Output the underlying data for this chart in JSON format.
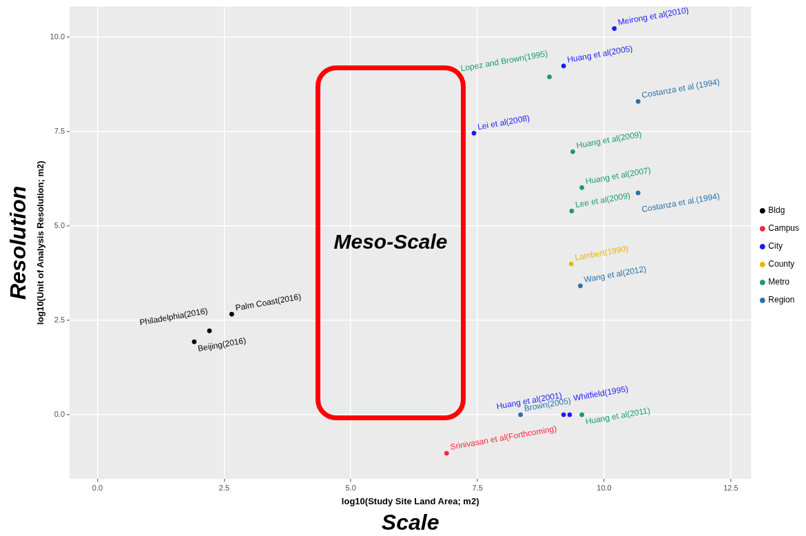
{
  "chart_data": {
    "type": "scatter",
    "xlabel": "log10(Study Site Land Area; m2)",
    "ylabel": "log10(Unit of Analysis Resolution; m2)",
    "xlim": [
      -0.55,
      12.9
    ],
    "ylim": [
      -1.7,
      10.8
    ],
    "xticks": [
      {
        "value": 0,
        "label": "0.0"
      },
      {
        "value": 2.5,
        "label": "2.5"
      },
      {
        "value": 5,
        "label": "5.0"
      },
      {
        "value": 7.5,
        "label": "7.5"
      },
      {
        "value": 10,
        "label": "10.0"
      },
      {
        "value": 12.5,
        "label": "12.5"
      }
    ],
    "yticks": [
      {
        "value": 0,
        "label": "0.0"
      },
      {
        "value": 2.5,
        "label": "2.5"
      },
      {
        "value": 5,
        "label": "5.0"
      },
      {
        "value": 7.5,
        "label": "7.5"
      },
      {
        "value": 10,
        "label": "10.0"
      }
    ],
    "grid": true,
    "legend": "right",
    "marker": "circle",
    "annotations": [
      "Resolution",
      "Scale",
      "Meso-Scale",
      {
        "text": "Beijing(2016)",
        "x": 1.91,
        "y": 1.93
      },
      {
        "text": "Philadelphia(2016)",
        "x": 2.21,
        "y": 2.22
      },
      {
        "text": "Palm Coast(2016)",
        "x": 2.65,
        "y": 2.66
      },
      {
        "text": "Srinivasan et al(Forthcoming)",
        "x": 6.89,
        "y": -1.02
      },
      {
        "text": "Meirong et al(2010)",
        "x": 10.2,
        "y": 10.22
      },
      {
        "text": "Huang et al(2005)",
        "x": 9.2,
        "y": 9.23
      },
      {
        "text": "Lei et al(2008)",
        "x": 7.43,
        "y": 7.45
      },
      {
        "text": "Huang et al(2001)",
        "x": 9.2,
        "y": 0
      },
      {
        "text": "Whitfield(1995)",
        "x": 9.32,
        "y": 0
      },
      {
        "text": "Lambert(1990)",
        "x": 9.35,
        "y": 3.99
      },
      {
        "text": "Lopez and Brown(1995)",
        "x": 8.92,
        "y": 8.94
      },
      {
        "text": "Huang et al(2009)",
        "x": 9.38,
        "y": 6.96
      },
      {
        "text": "Huang et al(2007)",
        "x": 9.56,
        "y": 6.01
      },
      {
        "text": "Lee et al(2009)",
        "x": 9.36,
        "y": 5.39
      },
      {
        "text": "Huang et al(2011)",
        "x": 9.56,
        "y": 0
      },
      {
        "text": "Costanza et al (1994)",
        "x": 10.67,
        "y": 8.29
      },
      {
        "text": "Costanza et al.(1994)",
        "x": 10.67,
        "y": 5.87
      },
      {
        "text": "Wang et al(2012)",
        "x": 9.53,
        "y": 3.41
      },
      {
        "text": "Brown(2005)",
        "x": 8.35,
        "y": 0
      }
    ],
    "series": [
      {
        "name": "Bldg",
        "color": "#000000",
        "x": [
          1.91,
          2.21,
          2.65
        ],
        "values": [
          1.93,
          2.22,
          2.66
        ]
      },
      {
        "name": "Campus",
        "color": "#f8263a",
        "x": [
          6.89
        ],
        "values": [
          -1.02
        ]
      },
      {
        "name": "City",
        "color": "#1a1aff",
        "x": [
          10.2,
          9.2,
          7.43,
          9.2,
          9.32
        ],
        "values": [
          10.22,
          9.23,
          7.45,
          0,
          0
        ]
      },
      {
        "name": "County",
        "color": "#e6b800",
        "x": [
          9.35
        ],
        "values": [
          3.99
        ]
      },
      {
        "name": "Metro",
        "color": "#1a9b6e",
        "x": [
          8.92,
          9.38,
          9.56,
          9.36,
          9.56
        ],
        "values": [
          8.94,
          6.96,
          6.01,
          5.39,
          0
        ]
      },
      {
        "name": "Region",
        "color": "#2a73a8",
        "x": [
          10.67,
          10.67,
          9.53,
          8.35
        ],
        "values": [
          8.29,
          5.87,
          3.41,
          0
        ]
      }
    ]
  }
}
